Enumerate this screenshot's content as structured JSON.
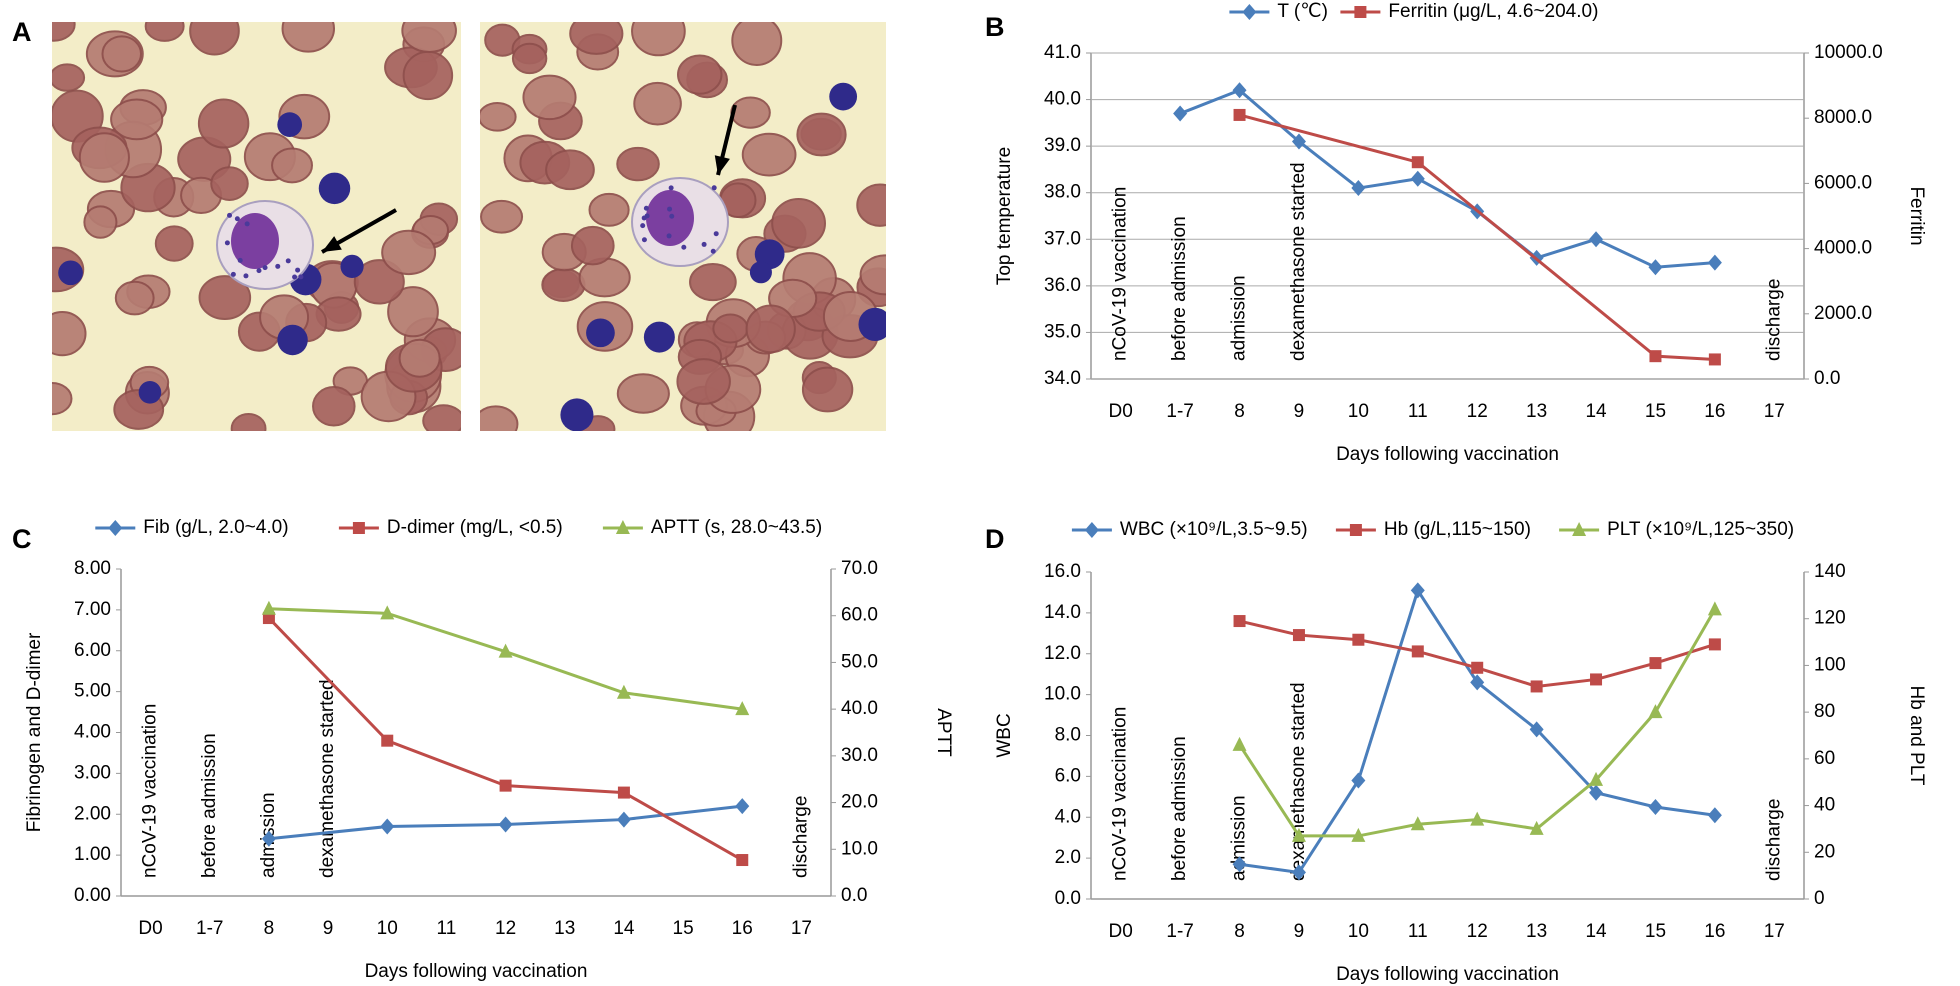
{
  "panel_labels": [
    "A",
    "B",
    "C",
    "D"
  ],
  "chart_data": [
    {
      "type": "line",
      "categories": [
        "D0",
        "1-7",
        "8",
        "9",
        "10",
        "11",
        "12",
        "13",
        "14",
        "15",
        "16",
        "17"
      ],
      "xlabel": "Days following vaccination",
      "ylabel": "Top temperature",
      "y2label": "Ferritin",
      "ylim": [
        34,
        41
      ],
      "yticks": [
        {
          "value": 34,
          "label": "34.0"
        },
        {
          "value": 35,
          "label": "35.0"
        },
        {
          "value": 36,
          "label": "36.0"
        },
        {
          "value": 37,
          "label": "37.0"
        },
        {
          "value": 38,
          "label": "38.0"
        },
        {
          "value": 39,
          "label": "39.0"
        },
        {
          "value": 40,
          "label": "40.0"
        },
        {
          "value": 41,
          "label": "41.0"
        }
      ],
      "y2lim": [
        0,
        10000
      ],
      "y2ticks": [
        {
          "value": 0,
          "label": "0.0"
        },
        {
          "value": 2000,
          "label": "2000.0"
        },
        {
          "value": 4000,
          "label": "4000.0"
        },
        {
          "value": 6000,
          "label": "6000.0"
        },
        {
          "value": 8000,
          "label": "8000.0"
        },
        {
          "value": 10000,
          "label": "10000.0"
        }
      ],
      "grid": true,
      "series": [
        {
          "name": "T (℃)",
          "color": "#4a7ebb",
          "marker": "diamond",
          "x": [
            "1-7",
            "8",
            "9",
            "10",
            "11",
            "12",
            "13",
            "14",
            "15",
            "16"
          ],
          "values": [
            39.7,
            40.2,
            39.1,
            38.1,
            38.3,
            37.6,
            36.6,
            37.0,
            36.4,
            36.5
          ]
        },
        {
          "name": "Ferritin (μg/L, 4.6~204.0)",
          "color": "#be4b48",
          "marker": "square",
          "axis": "y2",
          "x": [
            "8",
            "11",
            "15",
            "16"
          ],
          "values": [
            8100,
            6650,
            700,
            600
          ]
        }
      ],
      "annotations": [
        {
          "x": "D0",
          "text": "nCoV-19 vaccination"
        },
        {
          "x": "1-7",
          "text": "before admission"
        },
        {
          "x": "8",
          "text": "admission"
        },
        {
          "x": "9",
          "text": "dexamethasone started"
        },
        {
          "x": "17",
          "text": "discharge"
        }
      ]
    },
    {
      "type": "line",
      "categories": [
        "D0",
        "1-7",
        "8",
        "9",
        "10",
        "11",
        "12",
        "13",
        "14",
        "15",
        "16",
        "17"
      ],
      "xlabel": "Days following vaccination",
      "ylabel": "Fibrinogen and D-dimer",
      "y2label": "APTT",
      "ylim": [
        0,
        8
      ],
      "yticks": [
        {
          "value": 0,
          "label": "0.00"
        },
        {
          "value": 1,
          "label": "1.00"
        },
        {
          "value": 2,
          "label": "2.00"
        },
        {
          "value": 3,
          "label": "3.00"
        },
        {
          "value": 4,
          "label": "4.00"
        },
        {
          "value": 5,
          "label": "5.00"
        },
        {
          "value": 6,
          "label": "6.00"
        },
        {
          "value": 7,
          "label": "7.00"
        },
        {
          "value": 8,
          "label": "8.00"
        }
      ],
      "y2lim": [
        0,
        70
      ],
      "y2ticks": [
        {
          "value": 0,
          "label": "0.0"
        },
        {
          "value": 10,
          "label": "10.0"
        },
        {
          "value": 20,
          "label": "20.0"
        },
        {
          "value": 30,
          "label": "30.0"
        },
        {
          "value": 40,
          "label": "40.0"
        },
        {
          "value": 50,
          "label": "50.0"
        },
        {
          "value": 60,
          "label": "60.0"
        },
        {
          "value": 70,
          "label": "70.0"
        }
      ],
      "grid": false,
      "series": [
        {
          "name": "Fib (g/L, 2.0~4.0)",
          "color": "#4a7ebb",
          "marker": "diamond",
          "x": [
            "8",
            "10",
            "12",
            "14",
            "16"
          ],
          "values": [
            1.4,
            1.7,
            1.75,
            1.87,
            2.2
          ]
        },
        {
          "name": "D-dimer (mg/L, <0.5)",
          "color": "#be4b48",
          "marker": "square",
          "x": [
            "8",
            "10",
            "12",
            "14",
            "16"
          ],
          "values": [
            6.8,
            3.8,
            2.7,
            2.53,
            0.88
          ]
        },
        {
          "name": "APTT (s, 28.0~43.5)",
          "color": "#98b954",
          "marker": "triangle",
          "axis": "y2",
          "x": [
            "8",
            "10",
            "12",
            "14",
            "16"
          ],
          "values": [
            61.5,
            60.5,
            52.3,
            43.5,
            40.0
          ]
        }
      ],
      "annotations": [
        {
          "x": "D0",
          "text": "nCoV-19 vaccination"
        },
        {
          "x": "1-7",
          "text": "before admission"
        },
        {
          "x": "8",
          "text": "admission"
        },
        {
          "x": "9",
          "text": "dexamethasone started"
        },
        {
          "x": "17",
          "text": "discharge"
        }
      ]
    },
    {
      "type": "line",
      "categories": [
        "D0",
        "1-7",
        "8",
        "9",
        "10",
        "11",
        "12",
        "13",
        "14",
        "15",
        "16",
        "17"
      ],
      "xlabel": "Days following vaccination",
      "ylabel": "WBC",
      "y2label": "Hb and PLT",
      "ylim": [
        0,
        16
      ],
      "yticks": [
        {
          "value": 0,
          "label": "0.0"
        },
        {
          "value": 2,
          "label": "2.0"
        },
        {
          "value": 4,
          "label": "4.0"
        },
        {
          "value": 6,
          "label": "6.0"
        },
        {
          "value": 8,
          "label": "8.0"
        },
        {
          "value": 10,
          "label": "10.0"
        },
        {
          "value": 12,
          "label": "12.0"
        },
        {
          "value": 14,
          "label": "14.0"
        },
        {
          "value": 16,
          "label": "16.0"
        }
      ],
      "y2lim": [
        0,
        140
      ],
      "y2ticks": [
        0,
        20,
        40,
        60,
        80,
        100,
        120,
        140
      ],
      "grid": false,
      "series": [
        {
          "name": "WBC (×10⁹/L,3.5~9.5)",
          "color": "#4a7ebb",
          "marker": "diamond",
          "x": [
            "8",
            "9",
            "10",
            "11",
            "12",
            "13",
            "14",
            "15",
            "16"
          ],
          "values": [
            1.7,
            1.3,
            5.8,
            15.1,
            10.6,
            8.3,
            5.2,
            4.5,
            4.1
          ]
        },
        {
          "name": "Hb (g/L,115~150)",
          "color": "#be4b48",
          "marker": "square",
          "axis": "y2",
          "x": [
            "8",
            "9",
            "10",
            "11",
            "12",
            "13",
            "14",
            "15",
            "16"
          ],
          "values": [
            119,
            113,
            111,
            106,
            99,
            91,
            94,
            101,
            109
          ]
        },
        {
          "name": "PLT (×10⁹/L,125~350)",
          "color": "#98b954",
          "marker": "triangle",
          "axis": "y2",
          "x": [
            "8",
            "9",
            "10",
            "11",
            "12",
            "13",
            "14",
            "15",
            "16"
          ],
          "values": [
            66,
            27,
            27,
            32,
            34,
            30,
            51,
            80,
            124
          ]
        }
      ],
      "annotations": [
        {
          "x": "D0",
          "text": "nCoV-19 vaccination"
        },
        {
          "x": "1-7",
          "text": "before admission"
        },
        {
          "x": "8",
          "text": "admission"
        },
        {
          "x": "9",
          "text": "dexamethasone started"
        },
        {
          "x": "17",
          "text": "discharge"
        }
      ]
    }
  ]
}
